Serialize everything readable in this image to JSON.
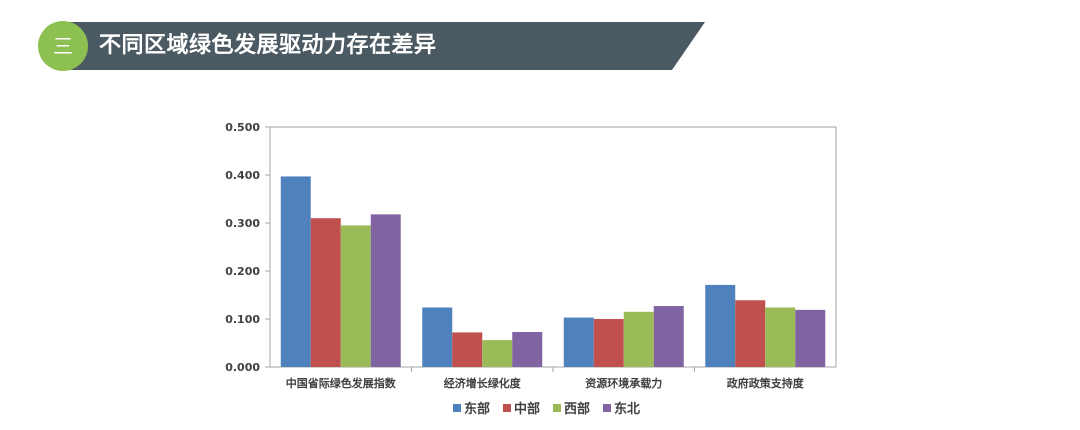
{
  "header": {
    "badge": "三",
    "title": "不同区域绿色发展驱动力存在差异"
  },
  "colors": {
    "header_bar": "#4b5a62",
    "badge": "#8cc152",
    "series": [
      "#4f81bd",
      "#c0504d",
      "#9bbb59",
      "#8064a2"
    ]
  },
  "chart_data": {
    "type": "bar",
    "title": "",
    "xlabel": "",
    "ylabel": "",
    "categories": [
      "中国省际绿色发展指数",
      "经济增长绿化度",
      "资源环境承载力",
      "政府政策支持度"
    ],
    "series": [
      {
        "name": "东部",
        "values": [
          0.397,
          0.124,
          0.103,
          0.171
        ]
      },
      {
        "name": "中部",
        "values": [
          0.31,
          0.072,
          0.1,
          0.139
        ]
      },
      {
        "name": "西部",
        "values": [
          0.295,
          0.056,
          0.115,
          0.124
        ]
      },
      {
        "name": "东北",
        "values": [
          0.318,
          0.073,
          0.127,
          0.119
        ]
      }
    ],
    "ylim": [
      0,
      0.5
    ],
    "yticks": [
      "0.000",
      "0.100",
      "0.200",
      "0.300",
      "0.400",
      "0.500"
    ],
    "grid": false,
    "legend_position": "bottom"
  }
}
